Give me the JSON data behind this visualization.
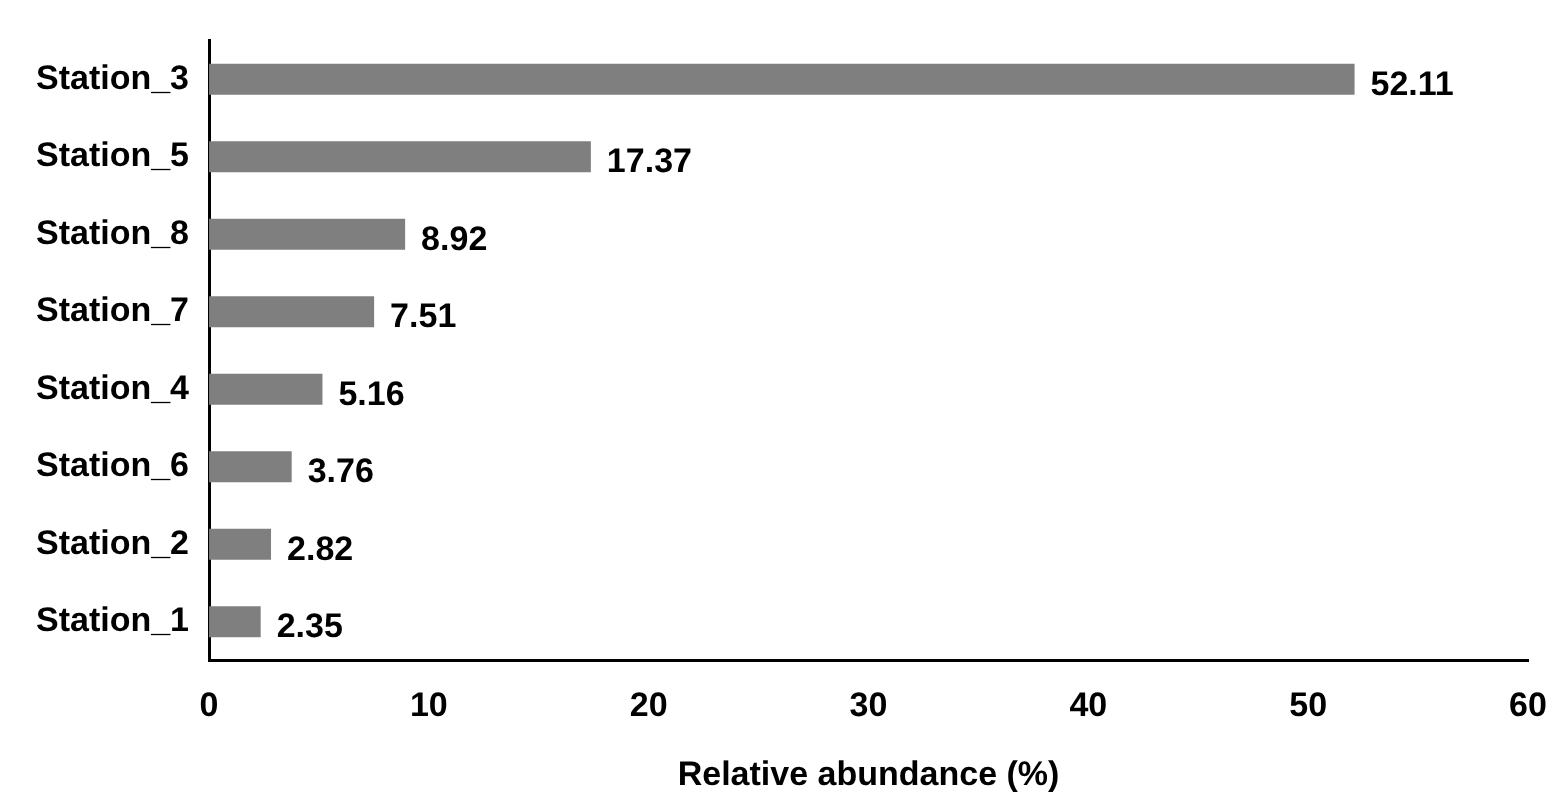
{
  "chart_data": {
    "type": "bar",
    "orientation": "horizontal",
    "xlabel": "Relative abundance (%)",
    "categories": [
      "Station_3",
      "Station_5",
      "Station_8",
      "Station_7",
      "Station_4",
      "Station_6",
      "Station_2",
      "Station_1"
    ],
    "values": [
      52.11,
      17.37,
      8.92,
      7.51,
      5.16,
      3.76,
      2.82,
      2.35
    ],
    "color": "#7f7f7f",
    "xlim": [
      0,
      60
    ],
    "xticks": [
      0,
      10,
      20,
      30,
      40,
      50,
      60
    ],
    "grid": false,
    "legend": false,
    "data_labels": true
  }
}
